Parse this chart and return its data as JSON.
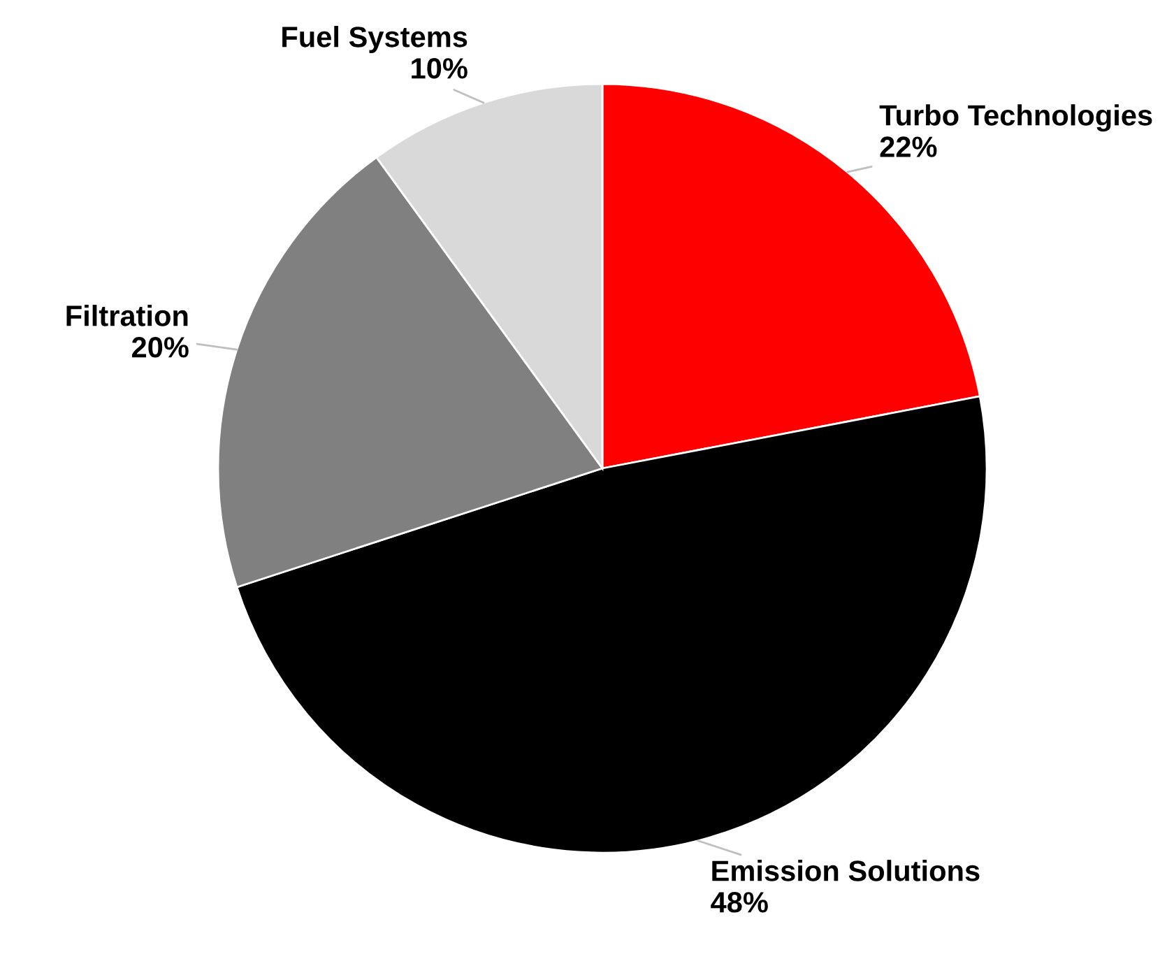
{
  "chart_data": {
    "type": "pie",
    "categories": [
      "Turbo Technologies",
      "Emission Solutions",
      "Filtration",
      "Fuel Systems"
    ],
    "values": [
      22,
      48,
      20,
      10
    ],
    "colors": [
      "#ff0000",
      "#000000",
      "#808080",
      "#d9d9d9"
    ],
    "value_labels": [
      "22%",
      "48%",
      "20%",
      "10%"
    ]
  }
}
